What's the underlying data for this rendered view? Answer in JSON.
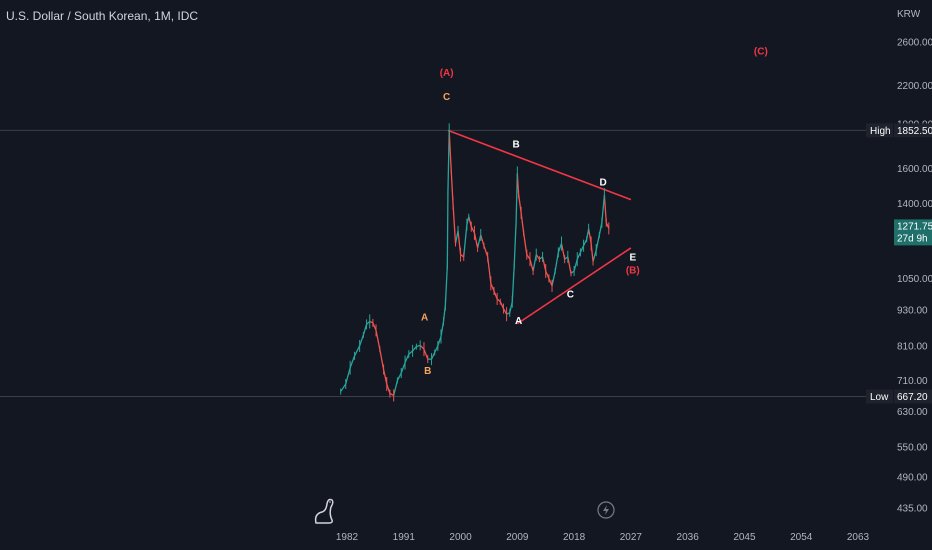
{
  "title": "U.S. Dollar / South Korean, 1M, IDC",
  "currency": "KRW",
  "colors": {
    "background": "#131722",
    "up": "#26a69a",
    "down": "#ef5350",
    "trendline": "#f23645",
    "white_label": "#ffffff",
    "orange_label": "#f7a35c",
    "red_label": "#f23645",
    "badge": "#1e222d",
    "price_badge": "#1f6f6a"
  },
  "markers": {
    "high": {
      "label": "High",
      "value": "1852.50",
      "price": 1852.5
    },
    "low": {
      "label": "Low",
      "value": "667.20",
      "price": 667.2
    },
    "current": {
      "value": "1271.75",
      "countdown": "27d 9h",
      "price": 1271.75
    }
  },
  "chart_data": {
    "type": "line",
    "y_axis": {
      "scale": "log",
      "ticks": [
        2600,
        2200,
        1900,
        1600,
        1400,
        1050,
        930,
        810,
        710,
        630,
        550,
        490,
        435
      ],
      "tick_labels": [
        "2600.00",
        "2200.00",
        "1900.00",
        "1600.00",
        "1400.00",
        "1050.00",
        "930.00",
        "810.00",
        "710.00",
        "630.00",
        "550.00",
        "490.00",
        "435.00"
      ],
      "range": [
        420,
        3000
      ]
    },
    "x_axis": {
      "ticks": [
        1982,
        1991,
        2000,
        2009,
        2018,
        2027,
        2036,
        2045,
        2054,
        2063
      ],
      "tick_labels": [
        "1982",
        "1991",
        "2000",
        "2009",
        "2018",
        "2027",
        "2036",
        "2045",
        "2054",
        "2063"
      ]
    },
    "series": [
      {
        "x": [
          1981.0,
          1981.8,
          1982.5,
          1983.2,
          1984.0,
          1984.6,
          1985.1,
          1985.6,
          1986.1,
          1986.6,
          1987.2,
          1987.8,
          1988.3,
          1988.8,
          1989.4,
          1990.0,
          1990.6,
          1991.2,
          1991.8,
          1992.4,
          1993.0,
          1993.6,
          1994.2,
          1994.8,
          1995.4,
          1995.9,
          1996.4,
          1996.9,
          1997.3,
          1997.6,
          1997.9,
          1998.0,
          1998.2,
          1998.5,
          1998.8,
          1999.2,
          1999.6,
          2000.0,
          2000.5,
          2001.0,
          2001.3,
          2001.7,
          2002.2,
          2002.7,
          2003.2,
          2003.7,
          2004.3,
          2004.8,
          2005.3,
          2005.8,
          2006.3,
          2006.8,
          2007.3,
          2007.8,
          2008.2,
          2008.5,
          2008.8,
          2009.0,
          2009.2,
          2009.6,
          2010.0,
          2010.5,
          2011.0,
          2011.5,
          2012.0,
          2012.5,
          2013.0,
          2013.5,
          2014.0,
          2014.5,
          2015.0,
          2015.5,
          2016.0,
          2016.5,
          2017.0,
          2017.5,
          2018.0,
          2018.5,
          2019.0,
          2019.5,
          2020.0,
          2020.3,
          2020.7,
          2021.0,
          2021.5,
          2022.0,
          2022.4,
          2022.8,
          2023.1,
          2023.5
        ],
        "values": [
          680,
          700,
          745,
          780,
          810,
          845,
          880,
          890,
          885,
          860,
          800,
          740,
          700,
          675,
          670,
          710,
          730,
          760,
          785,
          795,
          808,
          812,
          800,
          770,
          770,
          790,
          810,
          840,
          890,
          950,
          1100,
          1460,
          1852.5,
          1600,
          1400,
          1200,
          1260,
          1150,
          1140,
          1290,
          1330,
          1280,
          1250,
          1180,
          1240,
          1190,
          1140,
          1030,
          1000,
          970,
          960,
          935,
          915,
          920,
          960,
          1100,
          1300,
          1570,
          1450,
          1350,
          1250,
          1150,
          1130,
          1080,
          1150,
          1130,
          1140,
          1080,
          1050,
          1020,
          1080,
          1160,
          1200,
          1130,
          1140,
          1070,
          1080,
          1130,
          1160,
          1190,
          1220,
          1270,
          1200,
          1120,
          1170,
          1240,
          1300,
          1445,
          1300,
          1271.75
        ]
      }
    ],
    "annotations": [
      {
        "text": "(A)",
        "color": "red_label",
        "x": 1997.8,
        "price": 2280
      },
      {
        "text": "C",
        "color": "orange_label",
        "x": 1997.8,
        "price": 2080
      },
      {
        "text": "B",
        "color": "white_label",
        "x": 2008.8,
        "price": 1735
      },
      {
        "text": "D",
        "color": "white_label",
        "x": 2022.6,
        "price": 1500
      },
      {
        "text": "E",
        "color": "white_label",
        "x": 2027.3,
        "price": 1125
      },
      {
        "text": "(B)",
        "color": "red_label",
        "x": 2027.3,
        "price": 1070
      },
      {
        "text": "C",
        "color": "white_label",
        "x": 2017.4,
        "price": 975
      },
      {
        "text": "A",
        "color": "white_label",
        "x": 2009.2,
        "price": 882
      },
      {
        "text": "A",
        "color": "orange_label",
        "x": 1994.3,
        "price": 893
      },
      {
        "text": "B",
        "color": "orange_label",
        "x": 1994.8,
        "price": 728
      },
      {
        "text": "(C)",
        "color": "red_label",
        "x": 2047.6,
        "price": 2480
      }
    ],
    "trendlines": [
      {
        "x1": 1998.0,
        "p1": 1852.5,
        "x2": 2027.0,
        "p2": 1420
      },
      {
        "x1": 2009.0,
        "p1": 882,
        "x2": 2027.0,
        "p2": 1180
      }
    ]
  }
}
